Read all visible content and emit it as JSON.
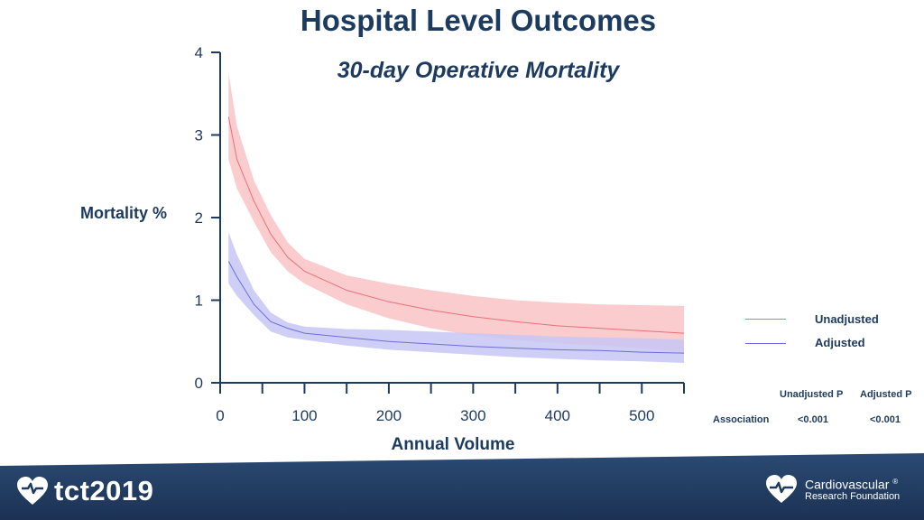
{
  "slide": {
    "title": "Hospital Level Outcomes",
    "subtitle": "30-day Operative Mortality"
  },
  "chart_data": {
    "type": "line",
    "xlabel": "Annual Volume",
    "ylabel": "Mortality %",
    "xlim": [
      0,
      550
    ],
    "ylim": [
      0,
      4
    ],
    "x_ticks": [
      "0",
      "100",
      "200",
      "300",
      "400",
      "500"
    ],
    "y_ticks": [
      "0",
      "1",
      "2",
      "3",
      "4"
    ],
    "series": [
      {
        "name": "Unadjusted",
        "color": "#e8707a",
        "band_color": "#f9c6c9",
        "x": [
          10,
          20,
          40,
          60,
          80,
          100,
          150,
          200,
          250,
          300,
          350,
          400,
          450,
          500,
          550
        ],
        "y": [
          3.22,
          2.7,
          2.2,
          1.8,
          1.52,
          1.35,
          1.12,
          0.98,
          0.88,
          0.8,
          0.74,
          0.69,
          0.66,
          0.63,
          0.6
        ],
        "lower": [
          2.7,
          2.35,
          1.95,
          1.58,
          1.35,
          1.2,
          0.95,
          0.78,
          0.66,
          0.57,
          0.52,
          0.48,
          0.45,
          0.42,
          0.37
        ],
        "upper": [
          3.75,
          3.1,
          2.45,
          2.03,
          1.7,
          1.5,
          1.3,
          1.2,
          1.12,
          1.05,
          1.0,
          0.97,
          0.95,
          0.94,
          0.93
        ]
      },
      {
        "name": "Adjusted",
        "color": "#6b6fd6",
        "band_color": "#c7c6f4",
        "x": [
          10,
          20,
          40,
          60,
          80,
          100,
          150,
          200,
          250,
          300,
          350,
          400,
          450,
          500,
          550
        ],
        "y": [
          1.47,
          1.28,
          0.95,
          0.74,
          0.66,
          0.6,
          0.55,
          0.5,
          0.47,
          0.44,
          0.42,
          0.4,
          0.39,
          0.37,
          0.36
        ],
        "lower": [
          1.2,
          1.05,
          0.82,
          0.62,
          0.55,
          0.52,
          0.45,
          0.4,
          0.37,
          0.34,
          0.31,
          0.29,
          0.27,
          0.26,
          0.24
        ],
        "upper": [
          1.82,
          1.55,
          1.12,
          0.85,
          0.73,
          0.68,
          0.65,
          0.64,
          0.62,
          0.6,
          0.58,
          0.56,
          0.55,
          0.54,
          0.52
        ]
      }
    ]
  },
  "legend": {
    "items": [
      {
        "label": "Unadjusted",
        "color": "#e8707a"
      },
      {
        "label": "Adjusted",
        "color": "#6b6fd6"
      }
    ]
  },
  "pvalues": {
    "header_unadjusted": "Unadjusted P",
    "header_adjusted": "Adjusted P",
    "row_label": "Association",
    "unadjusted": "<0.001",
    "adjusted": "<0.001"
  },
  "footer": {
    "left_logo_text": "tct2019",
    "right_logo_line1": "Cardiovascular",
    "right_logo_registered": "®",
    "right_logo_line2": "Research Foundation",
    "bg_color": "#1f3a60"
  }
}
